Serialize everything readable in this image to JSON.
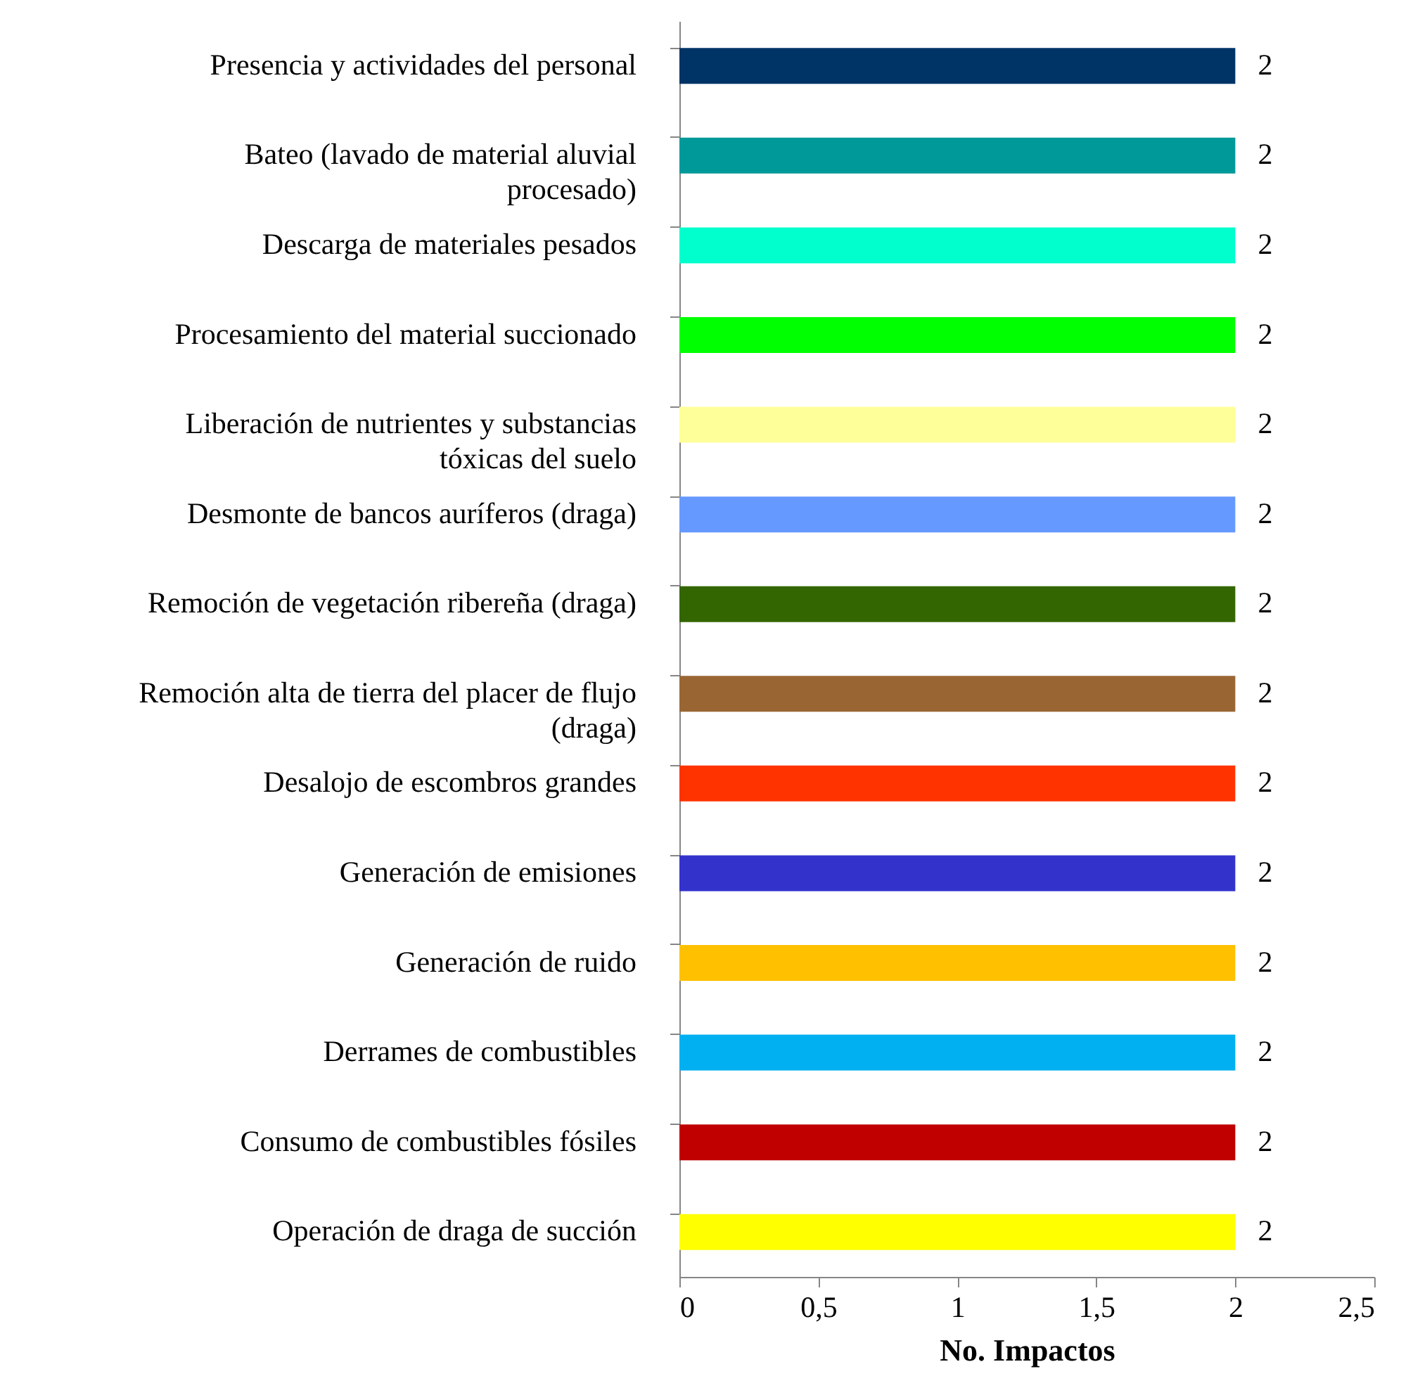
{
  "chart_data": {
    "type": "bar",
    "orientation": "horizontal",
    "xlabel": "No. Impactos",
    "categories": [
      "Presencia y actividades del personal",
      "Bateo (lavado de material aluvial procesado)",
      "Descarga de materiales pesados",
      "Procesamiento del material succionado",
      "Liberación de nutrientes y substancias tóxicas del suelo",
      "Desmonte de bancos auríferos (draga)",
      "Remoción de vegetación ribereña (draga)",
      "Remoción alta de tierra del placer de flujo (draga)",
      "Desalojo de escombros grandes",
      "Generación de emisiones",
      "Generación de ruido",
      "Derrames de combustibles",
      "Consumo de combustibles fósiles",
      "Operación de draga de succión"
    ],
    "values": [
      2,
      2,
      2,
      2,
      2,
      2,
      2,
      2,
      2,
      2,
      2,
      2,
      2,
      2
    ],
    "colors": [
      "#003366",
      "#009999",
      "#00ffcc",
      "#00ff00",
      "#ffff99",
      "#6699ff",
      "#336600",
      "#996633",
      "#ff3300",
      "#3333cc",
      "#ffc000",
      "#00b0f0",
      "#c00000",
      "#ffff00"
    ],
    "xlim": [
      0,
      2.5
    ],
    "xticks": [
      0,
      {
        "value": 0.5,
        "label": "0,5"
      },
      1,
      {
        "value": 1.5,
        "label": "1,5"
      },
      2,
      {
        "value": 2.5,
        "label": "2,5"
      }
    ],
    "data_labels": true
  }
}
